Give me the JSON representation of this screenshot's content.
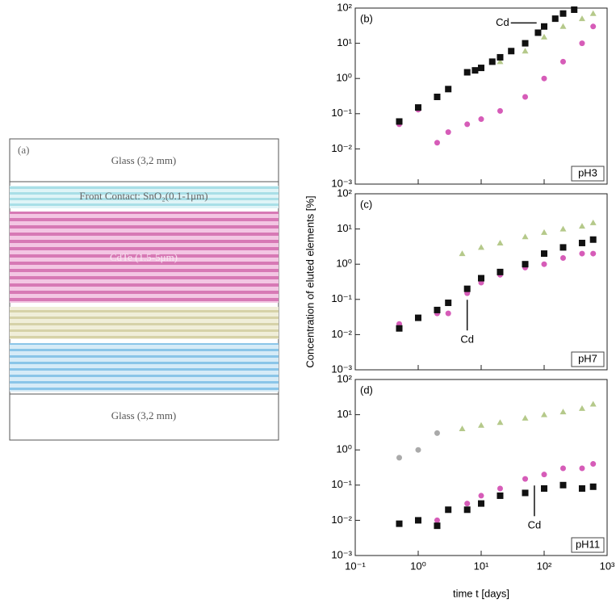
{
  "diagram": {
    "panel": "(a)",
    "layers": [
      "Glass (3,2 mm)",
      "Front Contact: SnO₂(0.1-1μm)",
      "CdTe (1.5-5μm)",
      "Glass (3,2 mm)"
    ]
  },
  "y_label": "Concentration of eluted elements [%]",
  "x_label": "time t [days]",
  "chart_data": [
    {
      "type": "scatter",
      "panel": "(b)",
      "condition": "pH3",
      "annotation": "Cd",
      "log_x": true,
      "log_y": true,
      "xlim": [
        0.1,
        1000
      ],
      "ylim": [
        0.001,
        100
      ],
      "xticks": [
        {
          "value": 0.1,
          "label": "10⁻¹"
        },
        {
          "value": 1,
          "label": "10⁰"
        },
        {
          "value": 10,
          "label": "10¹"
        },
        {
          "value": 100,
          "label": "10²"
        },
        {
          "value": 1000,
          "label": "10³"
        }
      ],
      "yticks": [
        {
          "value": 0.001,
          "label": "10⁻³"
        },
        {
          "value": 0.01,
          "label": "10⁻²"
        },
        {
          "value": 0.1,
          "label": "10⁻¹"
        },
        {
          "value": 1,
          "label": "10⁰"
        },
        {
          "value": 10,
          "label": "10¹"
        },
        {
          "value": 100,
          "label": "10²"
        }
      ],
      "series": [
        {
          "color": "#b5c98a",
          "marker": "triangle",
          "x": [
            10,
            20,
            50,
            100,
            200,
            400,
            600
          ],
          "values": [
            2,
            3,
            6,
            15,
            30,
            50,
            70
          ]
        },
        {
          "color": "#d65cb8",
          "marker": "circle",
          "x": [
            0.5,
            1,
            2,
            3,
            6,
            10,
            20,
            50,
            100,
            200,
            400,
            600
          ],
          "values": [
            0.05,
            0.13,
            0.015,
            0.03,
            0.05,
            0.07,
            0.12,
            0.3,
            1,
            3,
            10,
            30
          ]
        },
        {
          "color": "#111111",
          "marker": "square",
          "x": [
            0.5,
            1,
            2,
            3,
            6,
            8,
            10,
            15,
            20,
            30,
            50,
            80,
            100,
            150,
            200,
            300
          ],
          "values": [
            0.06,
            0.15,
            0.3,
            0.5,
            1.5,
            1.7,
            2,
            3,
            4,
            6,
            10,
            20,
            30,
            50,
            70,
            90
          ]
        }
      ]
    },
    {
      "type": "scatter",
      "panel": "(c)",
      "condition": "pH7",
      "annotation": "Cd",
      "log_x": true,
      "log_y": true,
      "xlim": [
        0.1,
        1000
      ],
      "ylim": [
        0.001,
        100
      ],
      "xticks": [
        {
          "value": 0.1,
          "label": "10⁻¹"
        },
        {
          "value": 1,
          "label": "10⁰"
        },
        {
          "value": 10,
          "label": "10¹"
        },
        {
          "value": 100,
          "label": "10²"
        },
        {
          "value": 1000,
          "label": "10³"
        }
      ],
      "yticks": [
        {
          "value": 0.001,
          "label": "10⁻³"
        },
        {
          "value": 0.01,
          "label": "10⁻²"
        },
        {
          "value": 0.1,
          "label": "10⁻¹"
        },
        {
          "value": 1,
          "label": "10⁰"
        },
        {
          "value": 10,
          "label": "10¹"
        },
        {
          "value": 100,
          "label": "10²"
        }
      ],
      "series": [
        {
          "color": "#b5c98a",
          "marker": "triangle",
          "x": [
            5,
            10,
            20,
            50,
            100,
            200,
            400,
            600
          ],
          "values": [
            2,
            3,
            4,
            6,
            8,
            10,
            12,
            15
          ]
        },
        {
          "color": "#d65cb8",
          "marker": "circle",
          "x": [
            0.5,
            1,
            2,
            3,
            6,
            10,
            20,
            50,
            100,
            200,
            400,
            600
          ],
          "values": [
            0.02,
            0.03,
            0.04,
            0.04,
            0.15,
            0.3,
            0.5,
            0.8,
            1,
            1.5,
            2,
            2
          ]
        },
        {
          "color": "#111111",
          "marker": "square",
          "x": [
            0.5,
            1,
            2,
            3,
            6,
            10,
            20,
            50,
            100,
            200,
            400,
            600
          ],
          "values": [
            0.015,
            0.03,
            0.05,
            0.08,
            0.2,
            0.4,
            0.6,
            1,
            2,
            3,
            4,
            5
          ]
        }
      ]
    },
    {
      "type": "scatter",
      "panel": "(d)",
      "condition": "pH11",
      "annotation": "Cd",
      "log_x": true,
      "log_y": true,
      "xlim": [
        0.1,
        1000
      ],
      "ylim": [
        0.001,
        100
      ],
      "xticks": [
        {
          "value": 0.1,
          "label": "10⁻¹"
        },
        {
          "value": 1,
          "label": "10⁰"
        },
        {
          "value": 10,
          "label": "10¹"
        },
        {
          "value": 100,
          "label": "10²"
        },
        {
          "value": 1000,
          "label": "10³"
        }
      ],
      "yticks": [
        {
          "value": 0.001,
          "label": "10⁻³"
        },
        {
          "value": 0.01,
          "label": "10⁻²"
        },
        {
          "value": 0.1,
          "label": "10⁻¹"
        },
        {
          "value": 1,
          "label": "10⁰"
        },
        {
          "value": 10,
          "label": "10¹"
        },
        {
          "value": 100,
          "label": "10²"
        }
      ],
      "series": [
        {
          "color": "#b5c98a",
          "marker": "triangle",
          "x": [
            5,
            10,
            20,
            50,
            100,
            200,
            400,
            600
          ],
          "values": [
            4,
            5,
            6,
            8,
            10,
            12,
            15,
            20
          ]
        },
        {
          "color": "#aaaaaa",
          "marker": "circle",
          "x": [
            0.5,
            1,
            2
          ],
          "values": [
            0.6,
            1,
            3
          ]
        },
        {
          "color": "#d65cb8",
          "marker": "circle",
          "x": [
            0.5,
            1,
            2,
            3,
            6,
            10,
            20,
            50,
            100,
            200,
            400,
            600
          ],
          "values": [
            0.008,
            0.01,
            0.01,
            0.02,
            0.03,
            0.05,
            0.08,
            0.15,
            0.2,
            0.3,
            0.3,
            0.4
          ]
        },
        {
          "color": "#111111",
          "marker": "square",
          "x": [
            0.5,
            1,
            2,
            3,
            6,
            10,
            20,
            50,
            100,
            200,
            400,
            600
          ],
          "values": [
            0.008,
            0.01,
            0.007,
            0.02,
            0.02,
            0.03,
            0.05,
            0.06,
            0.08,
            0.1,
            0.08,
            0.09
          ]
        }
      ]
    }
  ]
}
